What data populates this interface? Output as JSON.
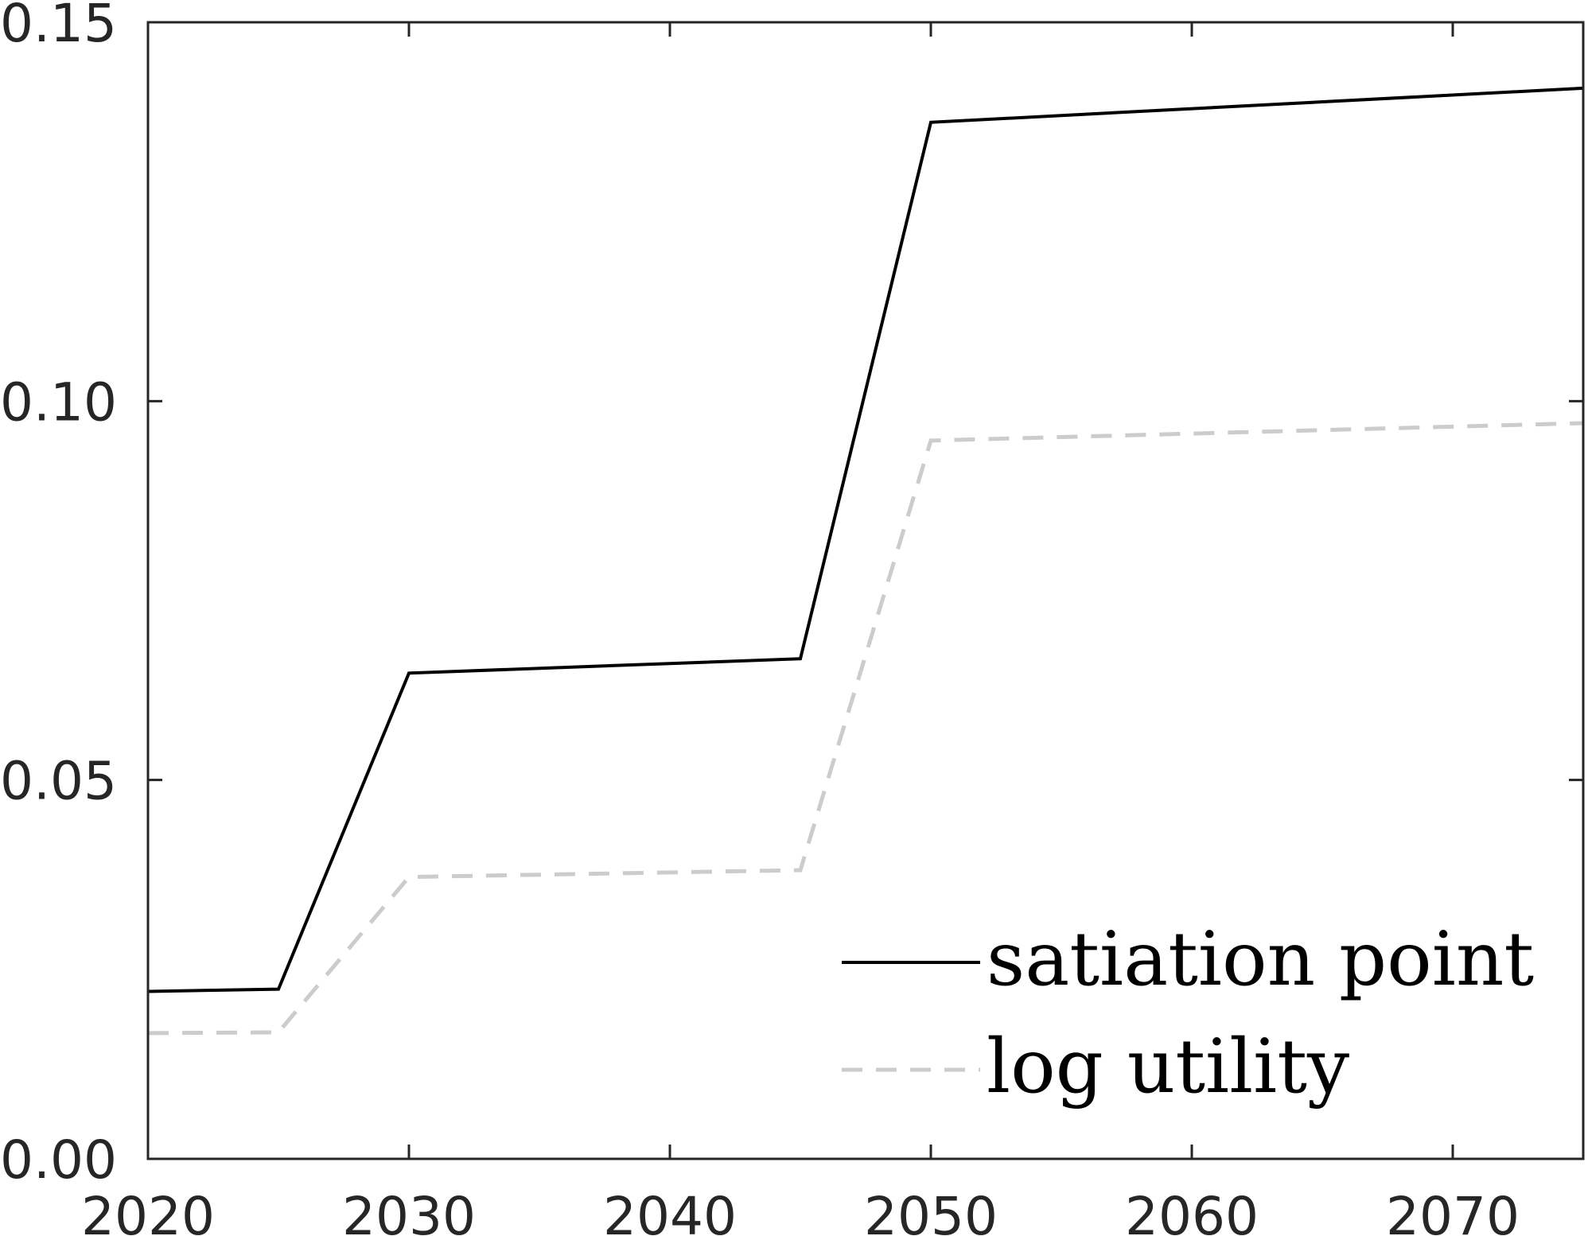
{
  "chart_data": {
    "type": "line",
    "title": "",
    "xlabel": "",
    "ylabel": "",
    "xlim": [
      2020,
      2075
    ],
    "ylim": [
      0.0,
      0.15
    ],
    "x_ticks": [
      2020,
      2030,
      2040,
      2050,
      2060,
      2070
    ],
    "x_tick_labels": [
      "2020",
      "2030",
      "2040",
      "2050",
      "2060",
      "2070"
    ],
    "y_ticks": [
      0.0,
      0.05,
      0.1,
      0.15
    ],
    "y_tick_labels": [
      "0.00",
      "0.05",
      "0.10",
      "0.15"
    ],
    "grid": false,
    "legend_position": "bottom-right",
    "series": [
      {
        "name": "satiation point",
        "style": "solid",
        "color": "#000000",
        "x": [
          2020,
          2025,
          2030,
          2045,
          2050,
          2075
        ],
        "y": [
          0.0221,
          0.0224,
          0.0641,
          0.066,
          0.1368,
          0.1413
        ]
      },
      {
        "name": "log utility",
        "style": "dashed",
        "color": "#cccccc",
        "x": [
          2020,
          2025,
          2030,
          2045,
          2050,
          2075
        ],
        "y": [
          0.0166,
          0.0167,
          0.0372,
          0.0381,
          0.0948,
          0.0971
        ]
      }
    ]
  }
}
